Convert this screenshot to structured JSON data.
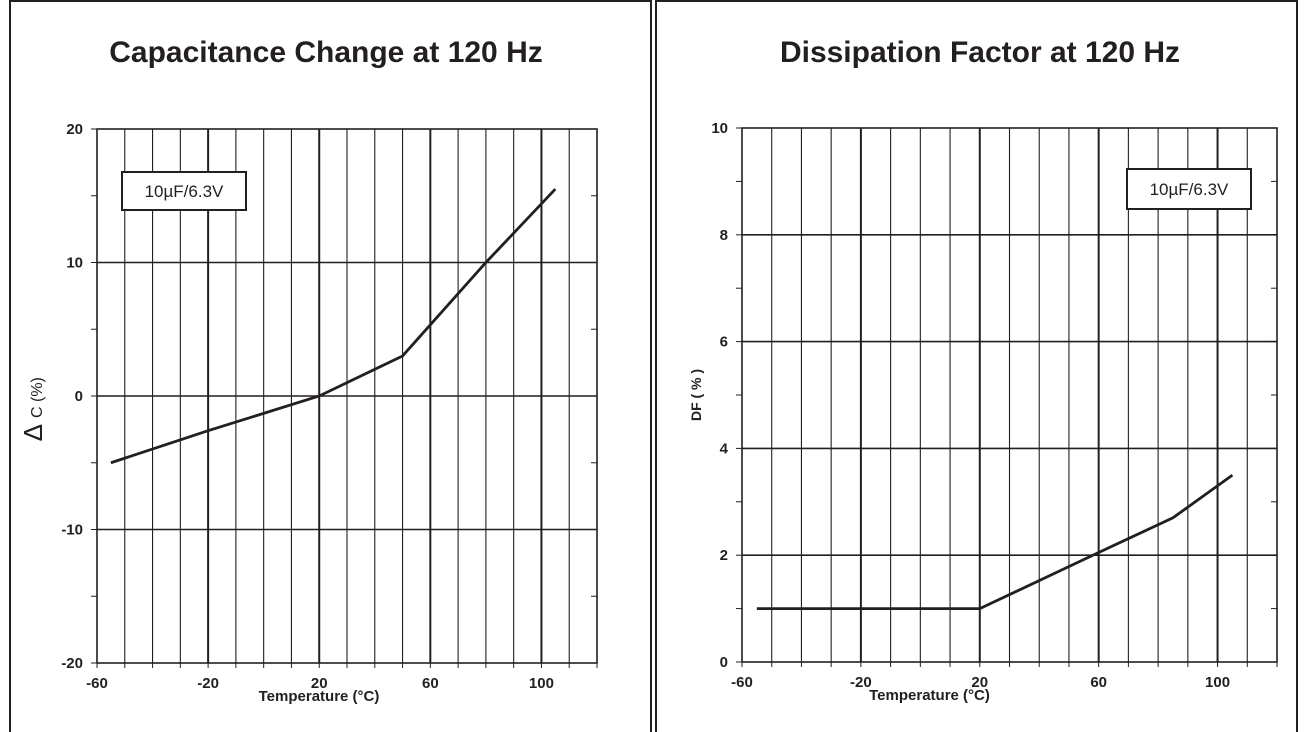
{
  "chart_data": [
    {
      "type": "line",
      "title": "Capacitance Change at 120 Hz",
      "xlabel": "Temperature (°C)",
      "ylabel_symbol": "Δ",
      "ylabel_text": "C  (%)",
      "annotation": "10µF/6.3V",
      "xlim": [
        -60,
        120
      ],
      "ylim": [
        -20,
        20
      ],
      "x_ticks": [
        -60,
        -20,
        20,
        60,
        100
      ],
      "x_ticklabels": [
        "-60",
        "-20",
        "20",
        "60",
        "100"
      ],
      "y_ticks": [
        -20,
        -10,
        0,
        10,
        20
      ],
      "y_ticklabels": [
        "-20",
        "-10",
        "0",
        "10",
        "20"
      ],
      "grid": true,
      "series": [
        {
          "x": [
            -55,
            -20,
            20,
            50,
            80,
            105
          ],
          "y": [
            -5,
            -2.6,
            0,
            3,
            10,
            15.5
          ]
        }
      ]
    },
    {
      "type": "line",
      "title": "Dissipation Factor at 120 Hz",
      "xlabel": "Temperature (°C)",
      "ylabel": "DF ( % )",
      "annotation": "10µF/6.3V",
      "xlim": [
        -60,
        120
      ],
      "ylim": [
        0,
        10
      ],
      "x_ticks": [
        -60,
        -20,
        20,
        60,
        100
      ],
      "x_ticklabels": [
        "-60",
        "-20",
        "20",
        "60",
        "100"
      ],
      "y_ticks": [
        0,
        2,
        4,
        6,
        8,
        10
      ],
      "y_ticklabels": [
        "0",
        "2",
        "4",
        "6",
        "8",
        "10"
      ],
      "grid": true,
      "series": [
        {
          "x": [
            -55,
            20,
            60,
            85,
            105
          ],
          "y": [
            1,
            1,
            2.05,
            2.7,
            3.5
          ]
        }
      ]
    }
  ]
}
